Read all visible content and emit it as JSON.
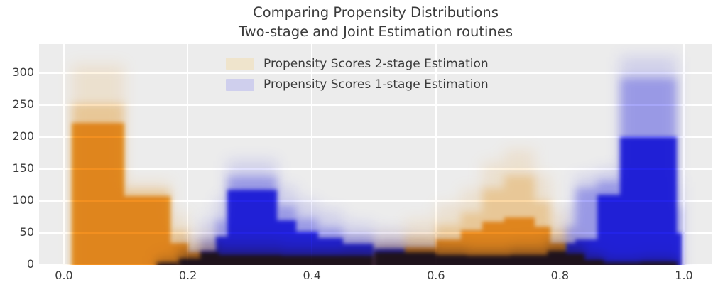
{
  "title": {
    "line1": "Comparing Propensity Distributions",
    "line2": "Two-stage and Joint Estimation routines"
  },
  "legend": {
    "items": [
      {
        "label": "Propensity Scores 2-stage Estimation",
        "swatch_color": "#efe4cc",
        "series": "two_stage"
      },
      {
        "label": "Propensity Scores 1-stage Estimation",
        "swatch_color": "#cfcfed",
        "series": "one_stage"
      }
    ]
  },
  "colors": {
    "figure_bg": "#ffffff",
    "plot_bg": "#ececec",
    "grid": "#ffffff",
    "text": "#3b3b3b",
    "orange_solid": "#f5a31f",
    "blue_solid": "#2424ee"
  },
  "chart_data": {
    "type": "bar",
    "subtype": "overlaid-histogram-ensemble",
    "note": "Many translucent histogram runs overlaid per series; each bar lists envelope heights: core = saturated height, mid = medium-density height, halo = faint maximum height. Bars given as [x_start, x_end, core, mid, halo] in counts.",
    "title": "Comparing Propensity Distributions\nTwo-stage and Joint Estimation routines",
    "xlabel": "",
    "ylabel": "",
    "xlim": [
      -0.04,
      1.046
    ],
    "ylim": [
      0,
      345
    ],
    "grid": "on",
    "legend_position": "upper center",
    "x_ticks": [
      {
        "label": "0.0",
        "value": 0.0
      },
      {
        "label": "0.2",
        "value": 0.2
      },
      {
        "label": "0.4",
        "value": 0.4
      },
      {
        "label": "0.6",
        "value": 0.6
      },
      {
        "label": "0.8",
        "value": 0.8
      },
      {
        "label": "1.0",
        "value": 1.0
      }
    ],
    "y_ticks": [
      {
        "label": "0",
        "value": 0
      },
      {
        "label": "50",
        "value": 50
      },
      {
        "label": "100",
        "value": 100
      },
      {
        "label": "150",
        "value": 150
      },
      {
        "label": "200",
        "value": 200
      },
      {
        "label": "250",
        "value": 250
      },
      {
        "label": "300",
        "value": 300
      }
    ],
    "series": [
      {
        "name": "Propensity Scores 2-stage Estimation",
        "color": "#f5a31f",
        "bars": [
          [
            0.013,
            0.097,
            222,
            252,
            313
          ],
          [
            0.097,
            0.172,
            108,
            118,
            130
          ],
          [
            0.172,
            0.2,
            35,
            55,
            80
          ],
          [
            0.2,
            0.25,
            20,
            32,
            50
          ],
          [
            0.25,
            0.35,
            16,
            25,
            40
          ],
          [
            0.35,
            0.45,
            14,
            22,
            35
          ],
          [
            0.45,
            0.5,
            15,
            25,
            40
          ],
          [
            0.5,
            0.55,
            20,
            32,
            50
          ],
          [
            0.55,
            0.6,
            28,
            45,
            70
          ],
          [
            0.6,
            0.64,
            40,
            62,
            95
          ],
          [
            0.64,
            0.675,
            55,
            82,
            118
          ],
          [
            0.675,
            0.71,
            68,
            120,
            160
          ],
          [
            0.71,
            0.76,
            75,
            140,
            180
          ],
          [
            0.76,
            0.785,
            60,
            100,
            140
          ],
          [
            0.785,
            0.81,
            35,
            55,
            85
          ],
          [
            0.81,
            0.84,
            18,
            28,
            45
          ],
          [
            0.84,
            0.87,
            8,
            14,
            22
          ],
          [
            0.87,
            0.93,
            3,
            6,
            10
          ],
          [
            0.93,
            0.99,
            4,
            8,
            14
          ]
        ]
      },
      {
        "name": "Propensity Scores 1-stage Estimation",
        "color": "#2424ee",
        "bars": [
          [
            0.15,
            0.185,
            3,
            6,
            14
          ],
          [
            0.185,
            0.22,
            10,
            20,
            40
          ],
          [
            0.22,
            0.245,
            22,
            40,
            70
          ],
          [
            0.245,
            0.263,
            45,
            70,
            105
          ],
          [
            0.263,
            0.344,
            118,
            138,
            163
          ],
          [
            0.344,
            0.375,
            70,
            92,
            122
          ],
          [
            0.375,
            0.41,
            52,
            72,
            100
          ],
          [
            0.41,
            0.45,
            42,
            58,
            84
          ],
          [
            0.45,
            0.5,
            33,
            46,
            66
          ],
          [
            0.5,
            0.55,
            26,
            36,
            54
          ],
          [
            0.55,
            0.6,
            20,
            29,
            44
          ],
          [
            0.6,
            0.65,
            16,
            24,
            36
          ],
          [
            0.65,
            0.72,
            14,
            21,
            32
          ],
          [
            0.72,
            0.78,
            16,
            24,
            36
          ],
          [
            0.78,
            0.81,
            22,
            33,
            50
          ],
          [
            0.81,
            0.825,
            35,
            60,
            90
          ],
          [
            0.825,
            0.86,
            40,
            120,
            140
          ],
          [
            0.86,
            0.897,
            110,
            131,
            150
          ],
          [
            0.897,
            0.988,
            200,
            292,
            326
          ],
          [
            0.988,
            0.997,
            50,
            90,
            130
          ]
        ]
      }
    ]
  }
}
